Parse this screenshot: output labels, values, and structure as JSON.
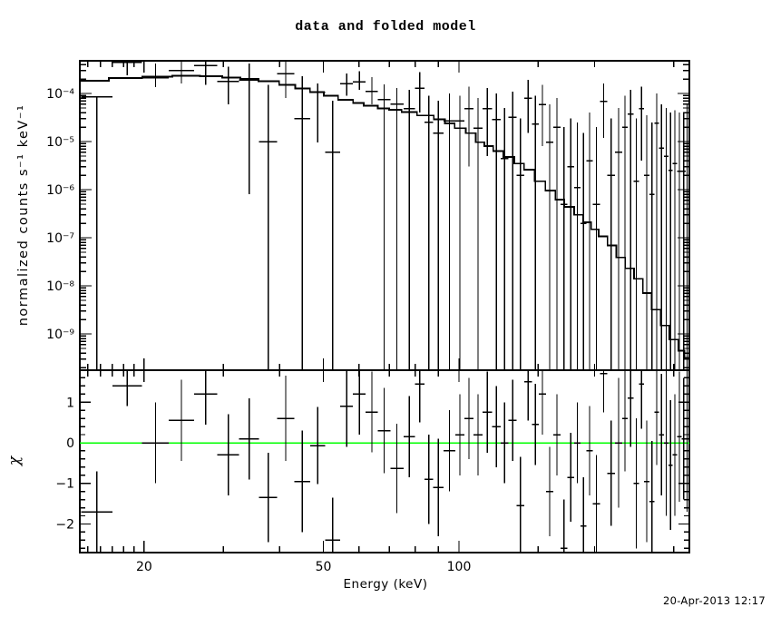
{
  "title": "data and folded model",
  "timestamp": "20-Apr-2013 12:17",
  "colors": {
    "foreground": "#000000",
    "background": "#ffffff",
    "zero_line": "#00ff00"
  },
  "chart_data": {
    "type": "line",
    "subtype": "xspec-spectrum-with-residuals",
    "title": "data and folded model",
    "xlabel": "Energy (keV)",
    "xscale": "log",
    "xlim": [
      14.4,
      324.7
    ],
    "xticks_major": [
      {
        "v": 20,
        "label": "20"
      },
      {
        "v": 50,
        "label": "50"
      },
      {
        "v": 100,
        "label": "100"
      }
    ],
    "xticks_minor": [
      15,
      16,
      17,
      18,
      19,
      30,
      40,
      60,
      70,
      80,
      90,
      150,
      200,
      300
    ],
    "grid": false,
    "legend": null,
    "panels": [
      {
        "name": "spectrum",
        "ylabel": "normalized counts s⁻¹ keV⁻¹",
        "yscale": "log",
        "ylim": [
          1.76e-10,
          0.000478
        ],
        "yticks_major": [
          {
            "v": 0.0001,
            "label": "10⁻⁴"
          },
          {
            "v": 1e-05,
            "label": "10⁻⁵"
          },
          {
            "v": 1e-06,
            "label": "10⁻⁶"
          },
          {
            "v": 1e-07,
            "label": "10⁻⁷"
          },
          {
            "v": 1e-08,
            "label": "10⁻⁸"
          },
          {
            "v": 1e-09,
            "label": "10⁻⁹"
          }
        ],
        "yminor_decades": [
          -10,
          -9,
          -8,
          -7,
          -6,
          -5,
          -4
        ],
        "series": [
          {
            "name": "folded model",
            "style": "step",
            "color": "#000000"
          },
          {
            "name": "data",
            "style": "cross-errorbar",
            "color": "#000000"
          }
        ]
      },
      {
        "name": "residuals",
        "ylabel": "χ",
        "yscale": "linear",
        "ylim": [
          -2.705,
          1.788
        ],
        "yticks_major": [
          {
            "v": 1,
            "label": "1"
          },
          {
            "v": 0,
            "label": "0"
          },
          {
            "v": -1,
            "label": "−1"
          },
          {
            "v": -2,
            "label": "−2"
          }
        ],
        "yminor_step": 0.2,
        "zero_line": {
          "y": 0,
          "color": "#00ff00"
        }
      }
    ],
    "model_steps": [
      [
        14.5,
        0.000184
      ],
      [
        16.7,
        0.00021
      ],
      [
        19.8,
        0.000224
      ],
      [
        23.1,
        0.000233
      ],
      [
        26.6,
        0.000228
      ],
      [
        29.8,
        0.000214
      ],
      [
        32.7,
        0.0002
      ],
      [
        35.9,
        0.00018
      ],
      [
        39.9,
        0.000151
      ],
      [
        43.3,
        0.000127
      ],
      [
        46.7,
        0.000107
      ],
      [
        50.1,
        9e-05
      ],
      [
        53.9,
        7.4e-05
      ],
      [
        58.2,
        6.3e-05
      ],
      [
        61.5,
        5.6e-05
      ],
      [
        66.0,
        4.9e-05
      ],
      [
        70.0,
        4.6e-05
      ],
      [
        74.6,
        4.1e-05
      ],
      [
        80.7,
        3.5e-05
      ],
      [
        87.9,
        2.9e-05
      ],
      [
        93.1,
        2.4e-05
      ],
      [
        97.8,
        1.9e-05
      ],
      [
        103.5,
        1.5e-05
      ],
      [
        108.9,
        9.7e-06
      ],
      [
        113.9,
        8.1e-06
      ],
      [
        119.1,
        6.3e-06
      ],
      [
        125.6,
        4.8e-06
      ],
      [
        132.7,
        3.5e-06
      ],
      [
        139.5,
        2.6e-06
      ],
      [
        147.3,
        1.5e-06
      ],
      [
        155.6,
        9.6e-07
      ],
      [
        163.6,
        6.2e-07
      ],
      [
        171.3,
        4.4e-07
      ],
      [
        180.1,
        3e-07
      ],
      [
        188.7,
        2.1e-07
      ],
      [
        196.6,
        1.5e-07
      ],
      [
        204.1,
        1.07e-07
      ],
      [
        213.7,
        6.9e-08
      ],
      [
        223.6,
        3.9e-08
      ],
      [
        233.9,
        2.3e-08
      ],
      [
        244.7,
        1.4e-08
      ],
      [
        256.0,
        7.1e-09
      ],
      [
        267.9,
        3.2e-09
      ],
      [
        280.2,
        1.5e-09
      ],
      [
        293.2,
        7.6e-10
      ],
      [
        306.8,
        4.5e-10
      ],
      [
        316.7,
        3.2e-10
      ]
    ],
    "bins_format": [
      "e_lo_keV",
      "e_hi_keV",
      "value",
      "err_lo_end",
      "err_hi_end",
      "chi",
      "chi_err"
    ],
    "bins": [
      [
        14.5,
        17.0,
        8.5e-05,
        null,
        8.5e-05,
        -1.7,
        1.0
      ],
      [
        17.0,
        19.8,
        0.00044,
        0.00024,
        null,
        1.4,
        0.5
      ],
      [
        19.8,
        22.7,
        0.00021,
        0.000135,
        0.00042,
        0.0,
        1.0
      ],
      [
        22.7,
        25.8,
        0.0003,
        0.00016,
        null,
        0.55,
        1.0
      ],
      [
        25.8,
        29.1,
        0.00038,
        0.00015,
        null,
        1.2,
        0.75
      ],
      [
        29.1,
        32.5,
        0.00018,
        6e-05,
        0.00036,
        -0.3,
        1.0
      ],
      [
        32.5,
        36.0,
        0.00019,
        8e-07,
        0.00042,
        0.1,
        1.0
      ],
      [
        36.0,
        39.5,
        1e-05,
        null,
        0.00015,
        -1.35,
        1.1
      ],
      [
        39.5,
        43.1,
        0.00026,
        8e-05,
        null,
        0.6,
        1.05
      ],
      [
        43.1,
        46.7,
        3e-05,
        null,
        0.00023,
        -0.95,
        1.25
      ],
      [
        46.7,
        50.5,
        0.000105,
        9.6e-06,
        0.00016,
        -0.07,
        0.95
      ],
      [
        50.5,
        54.5,
        6e-06,
        null,
        7e-05,
        -2.4,
        1.05
      ],
      [
        54.5,
        58.2,
        0.00016,
        9e-05,
        0.00026,
        0.9,
        1.0
      ],
      [
        58.2,
        62.1,
        0.000175,
        0.00012,
        0.00029,
        1.2,
        1.0
      ],
      [
        62.1,
        66.1,
        0.00011,
        5.9e-05,
        0.00022,
        0.76,
        1.0
      ],
      [
        66.1,
        70.4,
        7.4e-05,
        null,
        0.000154,
        0.3,
        1.05
      ],
      [
        70.4,
        75.3,
        6e-05,
        null,
        0.00013,
        -0.63,
        1.1
      ],
      [
        75.3,
        79.8,
        4.8e-05,
        null,
        0.00012,
        0.15,
        1.0
      ],
      [
        79.8,
        83.8,
        0.00013,
        4e-05,
        0.00028,
        1.45,
        0.95
      ],
      [
        83.8,
        87.6,
        2.5e-05,
        null,
        9e-05,
        -0.9,
        1.1
      ],
      [
        87.6,
        92.5,
        1.5e-05,
        null,
        7e-05,
        -1.1,
        1.2
      ],
      [
        92.5,
        98.1,
        2.7e-05,
        null,
        0.0001,
        -0.2,
        1.0
      ],
      [
        98.1,
        102.8,
        2.7e-05,
        null,
        9e-05,
        0.2,
        1.0
      ],
      [
        102.8,
        107.7,
        4.8e-05,
        3e-06,
        0.00014,
        0.6,
        1.0
      ],
      [
        107.7,
        112.8,
        1.9e-05,
        null,
        8e-05,
        0.2,
        1.0
      ],
      [
        112.8,
        118.4,
        4.8e-05,
        5e-06,
        0.00013,
        0.75,
        1.0
      ],
      [
        118.4,
        123.7,
        2.9e-05,
        null,
        0.0001,
        0.4,
        1.0
      ],
      [
        123.7,
        128.9,
        4.4e-06,
        null,
        5e-05,
        0.0,
        1.0
      ],
      [
        128.9,
        134.2,
        3.2e-05,
        null,
        0.00011,
        0.55,
        1.0
      ],
      [
        134.2,
        139.6,
        2e-06,
        null,
        3e-05,
        -1.55,
        1.2
      ],
      [
        139.6,
        145.2,
        8e-05,
        1.5e-05,
        0.00019,
        1.5,
        0.95
      ],
      [
        145.2,
        150.4,
        2.3e-05,
        null,
        9e-05,
        0.45,
        1.0
      ],
      [
        150.4,
        156.0,
        5.9e-05,
        8e-06,
        0.00015,
        1.2,
        1.0
      ],
      [
        156.0,
        161.9,
        9.6e-06,
        null,
        6e-05,
        -1.2,
        1.1
      ],
      [
        161.9,
        168.0,
        2e-05,
        null,
        8e-05,
        0.2,
        1.0
      ],
      [
        168.0,
        174.0,
        5e-07,
        null,
        2e-05,
        -2.6,
        1.2
      ],
      [
        174.0,
        180.1,
        3e-06,
        null,
        3e-05,
        -0.85,
        1.1
      ],
      [
        180.1,
        186.1,
        1.1e-06,
        null,
        2.5e-05,
        0.0,
        1.0
      ],
      [
        186.1,
        191.8,
        2e-07,
        null,
        1.5e-05,
        -2.05,
        1.2
      ],
      [
        191.8,
        198.1,
        4e-06,
        null,
        4e-05,
        -0.2,
        1.1
      ],
      [
        198.1,
        205.6,
        5e-07,
        null,
        2e-05,
        -1.5,
        1.2
      ],
      [
        205.6,
        213.3,
        6.9e-05,
        1.2e-05,
        0.00016,
        1.7,
        0.95
      ],
      [
        213.3,
        221.9,
        2e-06,
        null,
        3e-05,
        -0.75,
        1.3
      ],
      [
        221.9,
        230.3,
        6e-06,
        null,
        5e-05,
        0.0,
        1.6
      ],
      [
        230.3,
        236.8,
        2e-05,
        null,
        9e-05,
        0.6,
        1.3
      ],
      [
        236.8,
        244.0,
        3.7e-05,
        null,
        0.00012,
        1.1,
        1.2
      ],
      [
        244.0,
        250.9,
        1.5e-06,
        null,
        3e-05,
        -1.0,
        1.6
      ],
      [
        250.9,
        257.4,
        4.8e-05,
        4e-06,
        0.00014,
        1.45,
        1.1
      ],
      [
        257.4,
        264.7,
        2e-06,
        null,
        3.5e-05,
        -0.95,
        1.5
      ],
      [
        264.7,
        271.5,
        8e-07,
        null,
        2.5e-05,
        -1.45,
        1.5
      ],
      [
        271.5,
        277.8,
        2.4e-05,
        null,
        0.0001,
        0.75,
        1.3
      ],
      [
        277.8,
        285.0,
        7.3e-06,
        null,
        6e-05,
        0.2,
        1.5
      ],
      [
        285.0,
        291.7,
        5e-06,
        null,
        5e-05,
        0.0,
        1.8
      ],
      [
        291.7,
        297.9,
        2.5e-06,
        null,
        4e-05,
        -0.55,
        1.6
      ],
      [
        297.9,
        304.9,
        3.5e-06,
        null,
        4.5e-05,
        -0.3,
        1.5
      ],
      [
        304.9,
        312.0,
        2.4e-06,
        null,
        4e-05,
        0.15,
        1.6
      ],
      [
        312.0,
        318.6,
        2.4e-06,
        null,
        4e-05,
        0.1,
        1.5
      ],
      [
        318.6,
        323.0,
        7e-06,
        null,
        6e-05,
        0.1,
        1.8
      ]
    ]
  }
}
